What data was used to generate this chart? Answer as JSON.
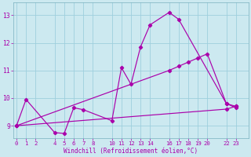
{
  "xlabel": "Windchill (Refroidissement éolien,°C)",
  "background_color": "#cce9f0",
  "grid_color": "#9ecfde",
  "line_color": "#aa00aa",
  "xticks": [
    0,
    1,
    2,
    4,
    5,
    6,
    7,
    8,
    10,
    11,
    12,
    13,
    14,
    16,
    17,
    18,
    19,
    20,
    22,
    23
  ],
  "yticks": [
    9,
    10,
    11,
    12,
    13
  ],
  "ylim": [
    8.55,
    13.45
  ],
  "xlim": [
    -0.3,
    24.3
  ],
  "line1_x": [
    0,
    1,
    4,
    5,
    6,
    7,
    10,
    11,
    12,
    13,
    14,
    16,
    17,
    22,
    23
  ],
  "line1_y": [
    9.0,
    9.95,
    8.75,
    8.72,
    9.65,
    9.58,
    9.18,
    11.1,
    10.5,
    11.85,
    12.65,
    13.1,
    12.85,
    9.8,
    9.7
  ],
  "line2_x": [
    0,
    16,
    17,
    18,
    19,
    20,
    22,
    23
  ],
  "line2_y": [
    9.0,
    11.0,
    11.15,
    11.3,
    11.45,
    11.6,
    9.8,
    9.65
  ],
  "line3_x": [
    0,
    22,
    23
  ],
  "line3_y": [
    9.0,
    9.6,
    9.7
  ]
}
